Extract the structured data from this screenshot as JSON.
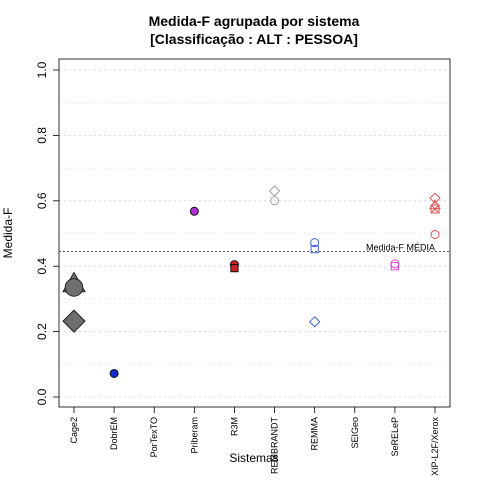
{
  "chart_data": {
    "type": "scatter",
    "title_lines": [
      "Medida-F agrupada por sistema",
      "[Classificação : ALT : PESSOA]"
    ],
    "xlabel": "Sistemas",
    "ylabel": "Medida-F",
    "categories": [
      "Cage2",
      "DobrEM",
      "PorTexTO",
      "Priberam",
      "R3M",
      "REMBRANDT",
      "REMMA",
      "SEIGeo",
      "SeRELeP",
      "XIP-L2F/Xerox"
    ],
    "y_ticks": [
      "0.0",
      "0.2",
      "0.4",
      "0.6",
      "0.8",
      "1.0"
    ],
    "ylim": [
      0,
      1
    ],
    "grid": "horizontal dotted",
    "reference_line": {
      "label": "Medida-F MÉDIA",
      "value": 0.445
    },
    "points": [
      {
        "category": "Cage2",
        "value": 0.347,
        "shape": "triangle",
        "size": "large",
        "color": "#6e6e6e",
        "filled": true
      },
      {
        "category": "Cage2",
        "value": 0.335,
        "shape": "circle",
        "size": "large",
        "color": "#6e6e6e",
        "filled": true
      },
      {
        "category": "Cage2",
        "value": 0.232,
        "shape": "diamond",
        "size": "large",
        "color": "#6e6e6e",
        "filled": true
      },
      {
        "category": "DobrEM",
        "value": 0.072,
        "shape": "circle",
        "size": "normal",
        "color": "#1030d0",
        "filled": true
      },
      {
        "category": "Priberam",
        "value": 0.568,
        "shape": "circle",
        "size": "normal",
        "color": "#b030d0",
        "filled": true
      },
      {
        "category": "R3M",
        "value": 0.405,
        "shape": "circle",
        "size": "normal",
        "color": "#cc2020",
        "filled": true
      },
      {
        "category": "R3M",
        "value": 0.394,
        "shape": "square",
        "size": "normal",
        "color": "#cc2020",
        "filled": true
      },
      {
        "category": "REMBRANDT",
        "value": 0.63,
        "shape": "diamond",
        "size": "normal",
        "color": "#a0a0a0",
        "filled": false
      },
      {
        "category": "REMBRANDT",
        "value": 0.6,
        "shape": "circle",
        "size": "normal",
        "color": "#a0a0a0",
        "filled": false
      },
      {
        "category": "REMMA",
        "value": 0.472,
        "shape": "circle",
        "size": "normal",
        "color": "#4060e0",
        "filled": false
      },
      {
        "category": "REMMA",
        "value": 0.452,
        "shape": "square",
        "size": "normal",
        "color": "#4060e0",
        "filled": false
      },
      {
        "category": "REMMA",
        "value": 0.23,
        "shape": "diamond",
        "size": "normal",
        "color": "#4060e0",
        "filled": false
      },
      {
        "category": "SeRELeP",
        "value": 0.407,
        "shape": "circle",
        "size": "normal",
        "color": "#e040e0",
        "filled": false
      },
      {
        "category": "SeRELeP",
        "value": 0.4,
        "shape": "square",
        "size": "normal",
        "color": "#e040e0",
        "filled": false
      },
      {
        "category": "XIP-L2F/Xerox",
        "value": 0.608,
        "shape": "diamond",
        "size": "normal",
        "color": "#e05050",
        "filled": false
      },
      {
        "category": "XIP-L2F/Xerox",
        "value": 0.587,
        "shape": "triangle",
        "size": "normal",
        "color": "#e05050",
        "filled": false
      },
      {
        "category": "XIP-L2F/Xerox",
        "value": 0.575,
        "shape": "square-x",
        "size": "normal",
        "color": "#e05050",
        "filled": false
      },
      {
        "category": "XIP-L2F/Xerox",
        "value": 0.497,
        "shape": "circle",
        "size": "normal",
        "color": "#e05050",
        "filled": false
      }
    ]
  }
}
